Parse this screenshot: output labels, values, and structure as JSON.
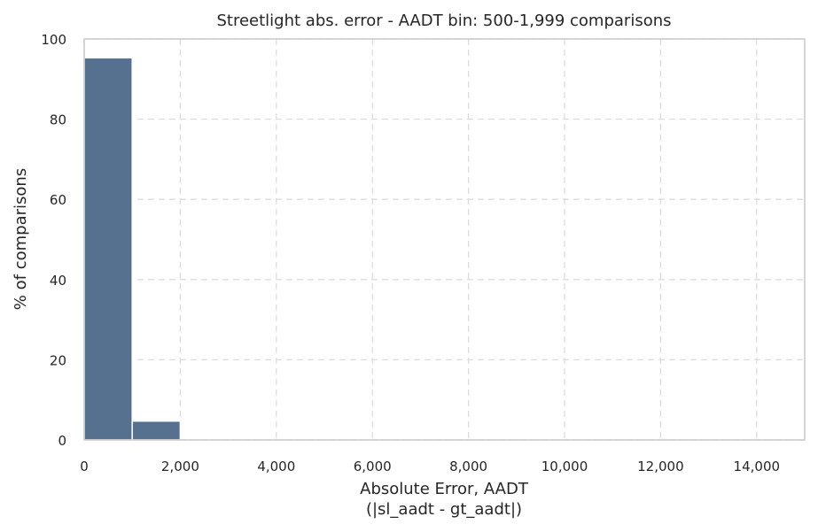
{
  "chart_data": {
    "type": "bar",
    "title": "Streetlight abs. error - AADT bin: 500-1,999 comparisons",
    "xlabel_line1": "Absolute Error, AADT",
    "xlabel_line2": "(|sl_aadt - gt_aadt|)",
    "ylabel": "% of comparisons",
    "xlim": [
      0,
      15000
    ],
    "ylim": [
      0,
      100
    ],
    "grid": true,
    "bin_width": 1000,
    "bins": [
      {
        "start": 0,
        "end": 1000,
        "value": 95.3
      },
      {
        "start": 1000,
        "end": 2000,
        "value": 4.7
      }
    ],
    "x_ticks": [
      {
        "value": 0,
        "label": "0"
      },
      {
        "value": 2000,
        "label": "2,000"
      },
      {
        "value": 4000,
        "label": "4,000"
      },
      {
        "value": 6000,
        "label": "6,000"
      },
      {
        "value": 8000,
        "label": "8,000"
      },
      {
        "value": 10000,
        "label": "10,000"
      },
      {
        "value": 12000,
        "label": "12,000"
      },
      {
        "value": 14000,
        "label": "14,000"
      }
    ],
    "y_ticks": [
      {
        "value": 0,
        "label": "0"
      },
      {
        "value": 20,
        "label": "20"
      },
      {
        "value": 40,
        "label": "40"
      },
      {
        "value": 60,
        "label": "60"
      },
      {
        "value": 80,
        "label": "80"
      },
      {
        "value": 100,
        "label": "100"
      }
    ],
    "bar_color": "#56718f"
  }
}
